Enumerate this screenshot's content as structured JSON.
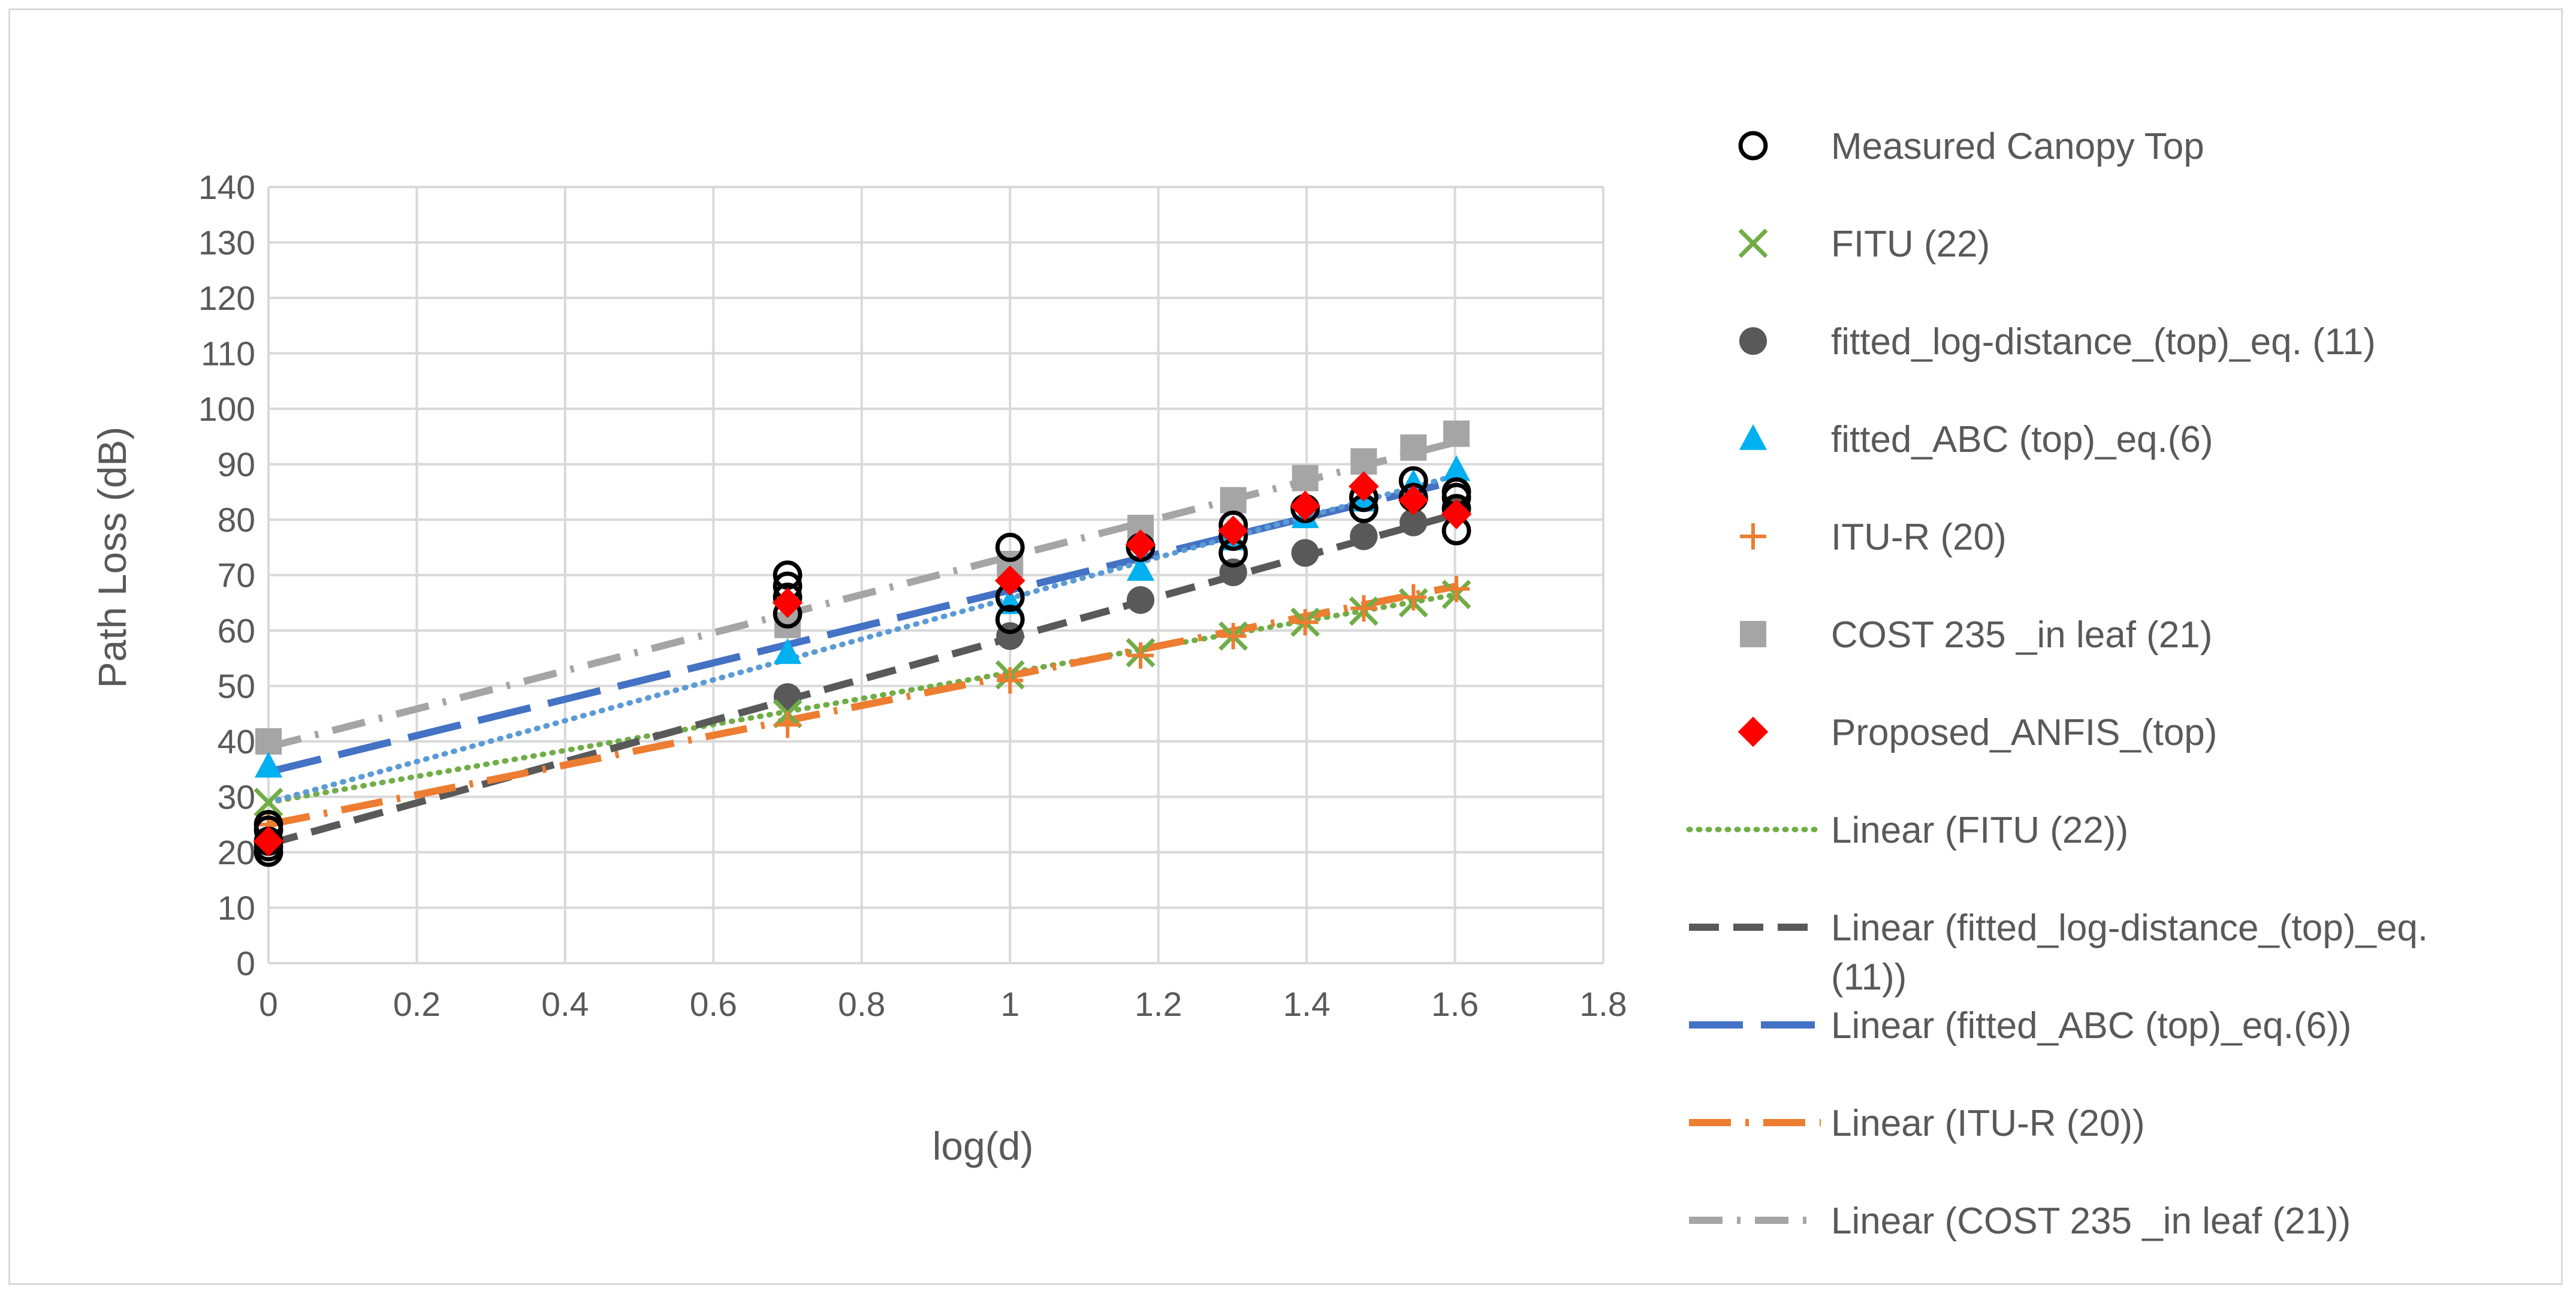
{
  "chart_data": {
    "type": "scatter",
    "title": "",
    "xlabel": "log(d)",
    "ylabel": "Path Loss (dB)",
    "xlim": [
      0,
      1.8
    ],
    "ylim": [
      0,
      140
    ],
    "x_ticks": [
      "0",
      "0.2",
      "0.4",
      "0.6",
      "0.8",
      "1",
      "1.2",
      "1.4",
      "1.6",
      "1.8"
    ],
    "y_ticks": [
      "0",
      "10",
      "20",
      "30",
      "40",
      "50",
      "60",
      "70",
      "80",
      "90",
      "100",
      "110",
      "120",
      "130",
      "140"
    ],
    "grid": true,
    "legend_position": "right",
    "series": [
      {
        "name": "Measured Canopy Top",
        "marker": "open-circle",
        "color": "#000000",
        "points": [
          [
            0,
            20
          ],
          [
            0,
            21
          ],
          [
            0,
            22
          ],
          [
            0,
            24
          ],
          [
            0,
            25
          ],
          [
            0.7,
            66
          ],
          [
            0.7,
            68
          ],
          [
            0.7,
            70
          ],
          [
            0.7,
            63
          ],
          [
            1,
            62
          ],
          [
            1,
            66
          ],
          [
            1,
            75
          ],
          [
            1.176,
            75
          ],
          [
            1.301,
            74
          ],
          [
            1.301,
            77
          ],
          [
            1.301,
            79
          ],
          [
            1.398,
            82
          ],
          [
            1.477,
            82
          ],
          [
            1.477,
            84
          ],
          [
            1.544,
            84
          ],
          [
            1.544,
            87
          ],
          [
            1.602,
            78
          ],
          [
            1.602,
            82
          ],
          [
            1.602,
            84
          ],
          [
            1.602,
            85
          ]
        ]
      },
      {
        "name": "FITU (22)",
        "marker": "x",
        "color": "#70ad47",
        "points": [
          [
            0,
            29
          ],
          [
            0.7,
            45
          ],
          [
            1,
            52
          ],
          [
            1.176,
            56
          ],
          [
            1.301,
            59
          ],
          [
            1.398,
            61.5
          ],
          [
            1.477,
            63.5
          ],
          [
            1.544,
            65
          ],
          [
            1.602,
            66.5
          ]
        ]
      },
      {
        "name": "fitted_log-distance_(top)_eq. (11)",
        "marker": "filled-circle",
        "color": "#595959",
        "points": [
          [
            0,
            22
          ],
          [
            0.7,
            48
          ],
          [
            1,
            59
          ],
          [
            1.176,
            65.5
          ],
          [
            1.301,
            70.5
          ],
          [
            1.398,
            74
          ],
          [
            1.477,
            77
          ],
          [
            1.544,
            79.5
          ],
          [
            1.602,
            82
          ]
        ]
      },
      {
        "name": "fitted_ABC (top)_eq.(6)",
        "marker": "triangle",
        "color": "#00b0f0",
        "points": [
          [
            0,
            35.5
          ],
          [
            0.7,
            56
          ],
          [
            1,
            65
          ],
          [
            1.176,
            71
          ],
          [
            1.301,
            76.5
          ],
          [
            1.398,
            80.5
          ],
          [
            1.477,
            83.5
          ],
          [
            1.544,
            86.5
          ],
          [
            1.602,
            89
          ]
        ]
      },
      {
        "name": "ITU-R (20)",
        "marker": "plus",
        "color": "#ed7d31",
        "points": [
          [
            0,
            25
          ],
          [
            0.7,
            43
          ],
          [
            1,
            51
          ],
          [
            1.176,
            55.5
          ],
          [
            1.301,
            59
          ],
          [
            1.398,
            61.5
          ],
          [
            1.477,
            64
          ],
          [
            1.544,
            66
          ],
          [
            1.602,
            67.5
          ]
        ]
      },
      {
        "name": "COST 235 _in leaf (21)",
        "marker": "square",
        "color": "#a5a5a5",
        "points": [
          [
            0,
            40
          ],
          [
            0.7,
            61
          ],
          [
            1,
            72
          ],
          [
            1.176,
            78.5
          ],
          [
            1.301,
            83.5
          ],
          [
            1.398,
            87.5
          ],
          [
            1.477,
            90.5
          ],
          [
            1.544,
            93
          ],
          [
            1.602,
            95.5
          ]
        ]
      },
      {
        "name": "Proposed_ANFIS_(top)",
        "marker": "diamond",
        "color": "#ff0000",
        "points": [
          [
            0,
            22
          ],
          [
            0.7,
            65
          ],
          [
            1,
            69
          ],
          [
            1.176,
            75.5
          ],
          [
            1.301,
            78
          ],
          [
            1.398,
            82.5
          ],
          [
            1.477,
            86
          ],
          [
            1.544,
            83.5
          ],
          [
            1.602,
            81
          ]
        ]
      }
    ],
    "trendlines": [
      {
        "name": "Linear (FITU (22))",
        "style": "dotted",
        "color": "#70ad47",
        "points": [
          [
            0,
            29
          ],
          [
            1.602,
            66.5
          ]
        ]
      },
      {
        "name": "Linear (fitted_log-distance_(top)_eq. (11))",
        "style": "dashed",
        "color": "#595959",
        "points": [
          [
            0,
            21.5
          ],
          [
            1.602,
            81
          ]
        ]
      },
      {
        "name": "Linear (fitted_ABC (top)_eq.(6))",
        "style": "long-dash",
        "color": "#4472c4",
        "points": [
          [
            0,
            34.5
          ],
          [
            1.602,
            87
          ]
        ]
      },
      {
        "name": "Linear (ITU-R (20))",
        "style": "long-dash-dot",
        "color": "#ed7d31",
        "points": [
          [
            0,
            25
          ],
          [
            1.602,
            68
          ]
        ]
      },
      {
        "name": "Linear (COST 235 _in leaf (21))",
        "style": "dash-dot",
        "color": "#a5a5a5",
        "points": [
          [
            0,
            39
          ],
          [
            1.602,
            94
          ]
        ]
      },
      {
        "name": "",
        "style": "dotted",
        "color": "#5b9bd5",
        "points": [
          [
            0,
            29
          ],
          [
            1.602,
            88
          ]
        ]
      }
    ],
    "legend": [
      {
        "kind": "marker",
        "marker": "open-circle",
        "color": "#000000",
        "label": "Measured Canopy Top"
      },
      {
        "kind": "marker",
        "marker": "x",
        "color": "#70ad47",
        "label": "FITU (22)"
      },
      {
        "kind": "marker",
        "marker": "filled-circle",
        "color": "#595959",
        "label": "fitted_log-distance_(top)_eq. (11)"
      },
      {
        "kind": "marker",
        "marker": "triangle",
        "color": "#00b0f0",
        "label": "fitted_ABC (top)_eq.(6)"
      },
      {
        "kind": "marker",
        "marker": "plus",
        "color": "#ed7d31",
        "label": "ITU-R (20)"
      },
      {
        "kind": "marker",
        "marker": "square",
        "color": "#a5a5a5",
        "label": "COST 235 _in leaf (21)"
      },
      {
        "kind": "marker",
        "marker": "diamond",
        "color": "#ff0000",
        "label": "Proposed_ANFIS_(top)"
      },
      {
        "kind": "line",
        "style": "dotted",
        "color": "#70ad47",
        "label": "Linear (FITU (22))"
      },
      {
        "kind": "line",
        "style": "dashed",
        "color": "#595959",
        "label": "Linear (fitted_log-distance_(top)_eq.",
        "label_cont": "(11))"
      },
      {
        "kind": "line",
        "style": "long-dash",
        "color": "#4472c4",
        "label": "Linear (fitted_ABC (top)_eq.(6))"
      },
      {
        "kind": "line",
        "style": "long-dash-dot",
        "color": "#ed7d31",
        "label": "Linear (ITU-R (20))"
      },
      {
        "kind": "line",
        "style": "dash-dot",
        "color": "#a5a5a5",
        "label": "Linear (COST 235 _in leaf (21))"
      }
    ]
  }
}
